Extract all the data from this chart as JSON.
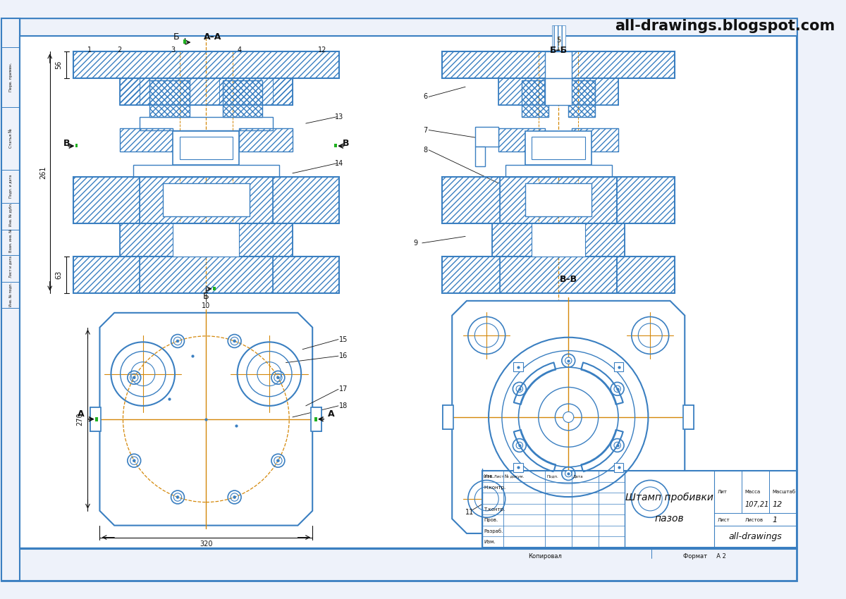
{
  "bg_color": "#eef2fa",
  "lc": "#3a7fc1",
  "oc": "#d4880a",
  "dc": "#111111",
  "gc": "#888888",
  "title": "all-drawings.blogspot.com",
  "stamp_title1": "Штамп пробивки",
  "stamp_title2": "пазов",
  "stamp_mass": "107,21",
  "stamp_scale": "12",
  "stamp_sheets": "1",
  "stamp_company": "all-drawings",
  "stamp_format": "А 2"
}
